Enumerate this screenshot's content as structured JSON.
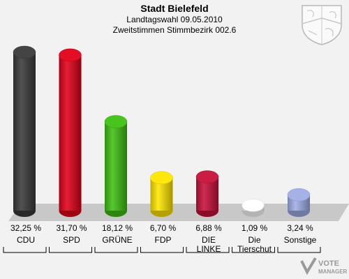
{
  "header": {
    "title": "Stadt Bielefeld",
    "subtitle": "Landtagswahl 09.05.2010",
    "subtitle2": "Zweitstimmen Stimmbezirk 002.6"
  },
  "watermark": {
    "line1": "VOTE",
    "line2": "MANAGER"
  },
  "chart_data": {
    "type": "bar",
    "title": "Stadt Bielefeld",
    "subtitle": "Landtagswahl 09.05.2010 / Zweitstimmen Stimmbezirk 002.6",
    "xlabel": "",
    "ylabel": "",
    "ylim": [
      0,
      32.25
    ],
    "grid": false,
    "legend": "none",
    "categories": [
      "CDU",
      "SPD",
      "GRÜNE",
      "FDP",
      "DIE LINKE",
      "Die Tierschut",
      "Sonstige"
    ],
    "label_lines": [
      [
        "CDU"
      ],
      [
        "SPD"
      ],
      [
        "GRÜNE"
      ],
      [
        "FDP"
      ],
      [
        "DIE",
        "LINKE"
      ],
      [
        "Die",
        "Tierschut"
      ],
      [
        "Sonstige"
      ]
    ],
    "values": [
      32.25,
      31.7,
      18.12,
      6.7,
      6.88,
      1.09,
      3.24
    ],
    "value_labels": [
      "32,25 %",
      "31,70 %",
      "18,12 %",
      "6,70 %",
      "6,88 %",
      "1,09 %",
      "3,24 %"
    ],
    "colors": [
      "#3a3a3a",
      "#e2001a",
      "#3fc012",
      "#ffe600",
      "#c8103a",
      "#ffffff",
      "#a0aee6"
    ]
  }
}
